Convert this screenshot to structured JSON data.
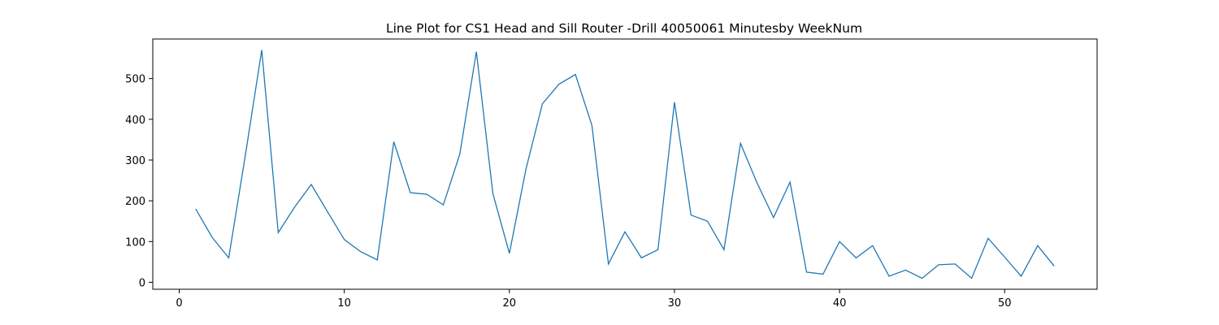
{
  "chart_data": {
    "type": "line",
    "title": "Line Plot for CS1 Head and Sill Router -Drill 40050061 Minutesby WeekNum",
    "xlabel": "",
    "ylabel": "",
    "xlim": [
      -1.6,
      55.6
    ],
    "ylim": [
      -17,
      597
    ],
    "xticks": [
      0,
      10,
      20,
      30,
      40,
      50
    ],
    "yticks": [
      0,
      100,
      200,
      300,
      400,
      500
    ],
    "grid": false,
    "line_color": "#1f77b4",
    "series": [
      {
        "x": [
          1,
          2,
          3,
          4,
          5,
          6,
          7,
          8,
          9,
          10,
          11,
          12,
          13,
          14,
          15,
          16,
          17,
          18,
          19,
          20,
          21,
          22,
          23,
          24,
          25,
          26,
          27,
          28,
          29,
          30,
          31,
          32,
          33,
          34,
          35,
          36,
          37,
          38,
          39,
          40,
          41,
          42,
          43,
          44,
          45,
          46,
          47,
          48,
          49,
          50,
          51,
          52,
          53
        ],
        "values": [
          180,
          110,
          60,
          310,
          570,
          122,
          185,
          240,
          172,
          105,
          75,
          55,
          345,
          220,
          216,
          190,
          315,
          566,
          218,
          71,
          277,
          438,
          486,
          510,
          385,
          45,
          124,
          60,
          80,
          442,
          165,
          150,
          80,
          341,
          244,
          159,
          246,
          25,
          20,
          100,
          60,
          90,
          15,
          30,
          10,
          43,
          45,
          10,
          108,
          62,
          15,
          90,
          40
        ]
      }
    ]
  }
}
